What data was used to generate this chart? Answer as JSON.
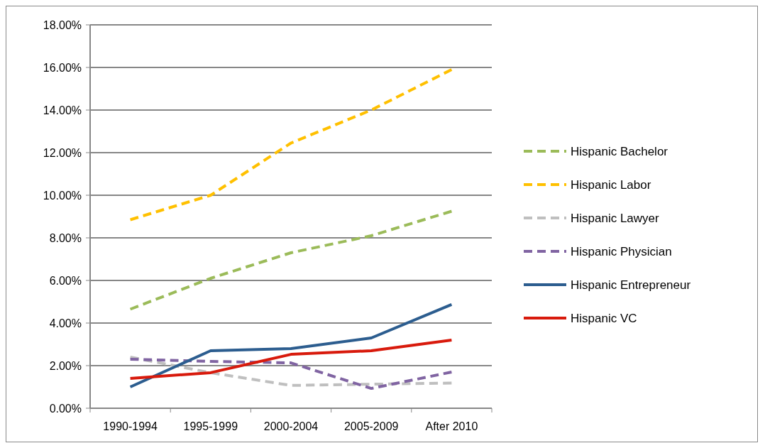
{
  "chart_data": {
    "type": "line",
    "categories": [
      "1990-1994",
      "1995-1999",
      "2000-2004",
      "2005-2009",
      "After 2010"
    ],
    "series": [
      {
        "name": "Hispanic Bachelor",
        "color": "#9bbb59",
        "line_style": "dashed",
        "values": [
          4.65,
          6.1,
          7.3,
          8.1,
          9.25
        ]
      },
      {
        "name": "Hispanic Labor",
        "color": "#ffc000",
        "line_style": "dashed",
        "values": [
          8.85,
          10.0,
          12.45,
          14.0,
          15.9
        ]
      },
      {
        "name": "Hispanic Lawyer",
        "color": "#bfbfbf",
        "line_style": "dashed",
        "values": [
          2.4,
          1.67,
          1.07,
          1.13,
          1.18
        ]
      },
      {
        "name": "Hispanic Physician",
        "color": "#8064a2",
        "line_style": "dashed",
        "values": [
          2.3,
          2.2,
          2.13,
          0.93,
          1.7
        ]
      },
      {
        "name": "Hispanic Entrepreneur",
        "color": "#2c5d8f",
        "line_style": "solid",
        "values": [
          1.0,
          2.7,
          2.8,
          3.3,
          4.87
        ]
      },
      {
        "name": "Hispanic VC",
        "color": "#d81a0c",
        "line_style": "solid",
        "values": [
          1.4,
          1.67,
          2.53,
          2.7,
          3.2
        ]
      }
    ],
    "ylim": [
      0,
      18
    ],
    "yticks": [
      {
        "value": 0,
        "label": "0.00%"
      },
      {
        "value": 2,
        "label": "2.00%"
      },
      {
        "value": 4,
        "label": "4.00%"
      },
      {
        "value": 6,
        "label": "6.00%"
      },
      {
        "value": 8,
        "label": "8.00%"
      },
      {
        "value": 10,
        "label": "10.00%"
      },
      {
        "value": 12,
        "label": "12.00%"
      },
      {
        "value": 14,
        "label": "14.00%"
      },
      {
        "value": 16,
        "label": "16.00%"
      },
      {
        "value": 18,
        "label": "18.00%"
      }
    ],
    "grid": "y",
    "legend": "right",
    "marker": "none"
  }
}
